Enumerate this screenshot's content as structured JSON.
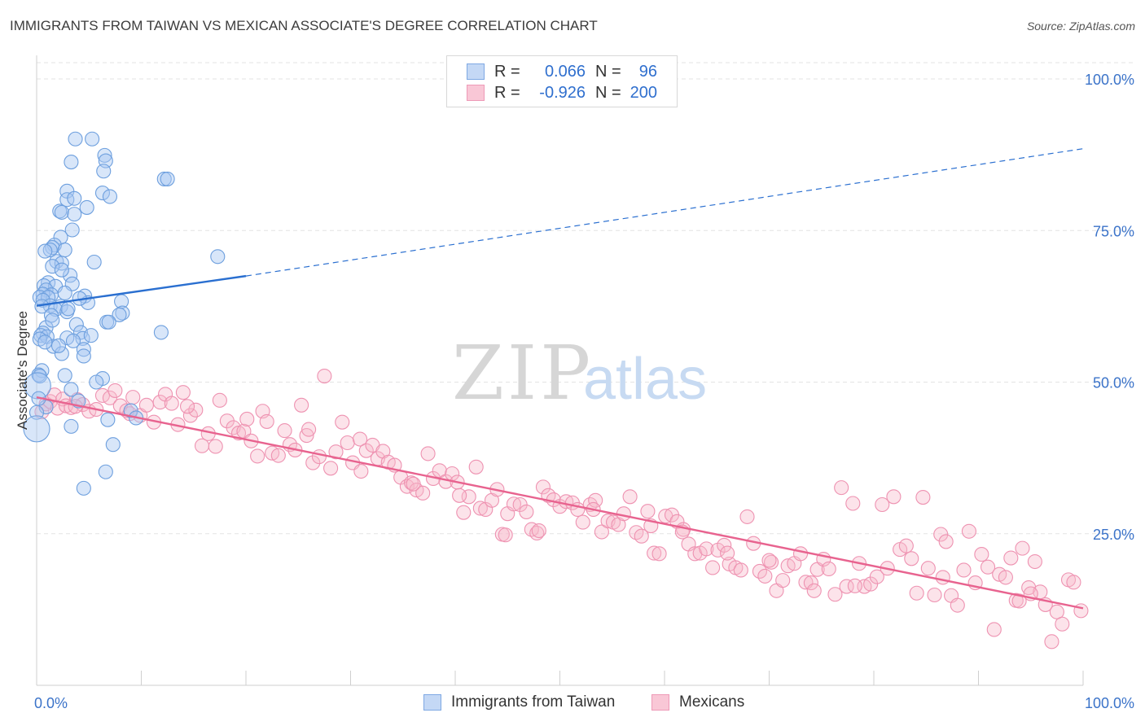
{
  "title": "IMMIGRANTS FROM TAIWAN VS MEXICAN ASSOCIATE'S DEGREE CORRELATION CHART",
  "source": "Source: ZipAtlas.com",
  "watermark": {
    "zip": "ZIP",
    "atlas": "atlas"
  },
  "legend_top": [
    {
      "r_label": "R =",
      "r_value": "0.066",
      "n_label": "N =",
      "n_value": "96"
    },
    {
      "r_label": "R =",
      "r_value": "-0.926",
      "n_label": "N =",
      "n_value": "200"
    }
  ],
  "legend_bottom": [
    "Immigrants from Taiwan",
    "Mexicans"
  ],
  "colors": {
    "taiwan_fill": "#a9c8f2",
    "taiwan_stroke": "#6d9fde",
    "taiwan_line": "#2a6fd0",
    "mexican_fill": "#f7b8cb",
    "mexican_stroke": "#ee92b1",
    "mexican_line": "#e8638f",
    "tick_label": "#3b73c9",
    "grid": "#e3e3e3"
  },
  "chart_data": {
    "type": "scatter",
    "title": "IMMIGRANTS FROM TAIWAN VS MEXICAN ASSOCIATE'S DEGREE CORRELATION CHART",
    "xlabel": "",
    "ylabel": "Associate's Degree",
    "xlim": [
      0,
      100
    ],
    "ylim": [
      0,
      105
    ],
    "x_tick_labels": [
      "0.0%",
      "100.0%"
    ],
    "y_tick_labels": [
      "25.0%",
      "50.0%",
      "75.0%",
      "100.0%"
    ],
    "y_ticks": [
      25,
      50,
      75,
      100
    ],
    "grid": true,
    "legend_position": "top-center",
    "series": [
      {
        "name": "Immigrants from Taiwan",
        "R": 0.066,
        "N": 96,
        "trend": {
          "x": [
            0,
            20,
            100
          ],
          "y": [
            62.6,
            67.5,
            88.5
          ],
          "solid_until_x": 20
        },
        "points": [
          [
            3.7,
            90.1
          ],
          [
            5.3,
            90.1
          ],
          [
            3.3,
            86.3
          ],
          [
            6.5,
            87.4
          ],
          [
            6.6,
            86.5
          ],
          [
            6.4,
            84.8
          ],
          [
            12.2,
            83.5
          ],
          [
            12.5,
            83.5
          ],
          [
            2.9,
            81.5
          ],
          [
            6.3,
            81.2
          ],
          [
            7.0,
            80.6
          ],
          [
            2.9,
            80.1
          ],
          [
            3.6,
            80.3
          ],
          [
            4.8,
            78.8
          ],
          [
            2.2,
            78.2
          ],
          [
            2.4,
            78.0
          ],
          [
            3.6,
            77.7
          ],
          [
            3.4,
            75.1
          ],
          [
            2.3,
            73.9
          ],
          [
            1.7,
            72.6
          ],
          [
            1.5,
            72.2
          ],
          [
            1.3,
            71.8
          ],
          [
            2.7,
            71.8
          ],
          [
            0.8,
            71.6
          ],
          [
            17.3,
            70.7
          ],
          [
            5.5,
            69.8
          ],
          [
            1.9,
            69.9
          ],
          [
            2.4,
            69.6
          ],
          [
            1.5,
            69.1
          ],
          [
            3.2,
            67.6
          ],
          [
            3.4,
            66.2
          ],
          [
            1.1,
            66.4
          ],
          [
            0.7,
            65.9
          ],
          [
            1.8,
            65.8
          ],
          [
            0.9,
            65.2
          ],
          [
            2.7,
            64.7
          ],
          [
            1.4,
            64.4
          ],
          [
            0.6,
            64.5
          ],
          [
            0.3,
            64.0
          ],
          [
            1.1,
            64.0
          ],
          [
            4.6,
            64.2
          ],
          [
            0.6,
            63.5
          ],
          [
            8.1,
            63.3
          ],
          [
            4.9,
            63.1
          ],
          [
            1.3,
            62.6
          ],
          [
            2.3,
            62.5
          ],
          [
            0.5,
            62.5
          ],
          [
            1.8,
            62.0
          ],
          [
            8.2,
            61.4
          ],
          [
            7.9,
            61.1
          ],
          [
            2.9,
            61.6
          ],
          [
            1.4,
            61.0
          ],
          [
            6.7,
            59.9
          ],
          [
            6.9,
            59.9
          ],
          [
            3.8,
            59.5
          ],
          [
            0.9,
            59.0
          ],
          [
            0.6,
            58.1
          ],
          [
            11.9,
            58.2
          ],
          [
            4.2,
            58.2
          ],
          [
            0.4,
            57.7
          ],
          [
            1.0,
            57.5
          ],
          [
            0.3,
            57.1
          ],
          [
            4.4,
            57.2
          ],
          [
            2.9,
            57.3
          ],
          [
            3.5,
            56.8
          ],
          [
            1.6,
            55.9
          ],
          [
            4.5,
            55.4
          ],
          [
            2.4,
            54.7
          ],
          [
            4.5,
            54.3
          ],
          [
            0.5,
            51.9
          ],
          [
            0.2,
            51.2
          ],
          [
            0.3,
            51.0
          ],
          [
            2.7,
            51.1
          ],
          [
            6.3,
            50.6
          ],
          [
            5.7,
            50.0
          ],
          [
            3.3,
            48.8
          ],
          [
            4.0,
            46.9
          ],
          [
            0.9,
            45.9
          ],
          [
            9.0,
            45.3
          ],
          [
            9.5,
            44.1
          ],
          [
            6.8,
            43.8
          ],
          [
            3.3,
            42.7
          ],
          [
            7.3,
            39.7
          ],
          [
            6.6,
            35.2
          ],
          [
            4.5,
            32.5
          ],
          [
            0.1,
            49.4
          ],
          [
            0.2,
            47.3
          ],
          [
            0.0,
            45.0
          ],
          [
            0.0,
            42.3
          ],
          [
            1.5,
            60.2
          ],
          [
            0.8,
            56.6
          ],
          [
            2.1,
            56.0
          ],
          [
            5.2,
            57.7
          ],
          [
            3.0,
            62.1
          ],
          [
            2.4,
            68.5
          ],
          [
            4.1,
            63.8
          ]
        ]
      },
      {
        "name": "Mexicans",
        "R": -0.926,
        "N": 200,
        "trend": {
          "x": [
            0,
            100
          ],
          "y": [
            47.5,
            12.7
          ]
        },
        "points": [
          [
            0.5,
            45.1
          ],
          [
            0.9,
            46.4
          ],
          [
            1.3,
            46.8
          ],
          [
            1.7,
            47.9
          ],
          [
            2.0,
            45.7
          ],
          [
            2.5,
            47.2
          ],
          [
            2.8,
            46.1
          ],
          [
            3.3,
            45.8
          ],
          [
            3.9,
            47.1
          ],
          [
            4.4,
            46.3
          ],
          [
            5.0,
            45.2
          ],
          [
            5.7,
            45.5
          ],
          [
            6.3,
            47.8
          ],
          [
            7.0,
            47.4
          ],
          [
            7.5,
            48.6
          ],
          [
            8.0,
            46.1
          ],
          [
            8.6,
            45.3
          ],
          [
            9.2,
            47.5
          ],
          [
            9.9,
            44.5
          ],
          [
            10.5,
            46.2
          ],
          [
            11.2,
            43.4
          ],
          [
            11.8,
            46.7
          ],
          [
            12.3,
            48.0
          ],
          [
            12.9,
            46.5
          ],
          [
            13.5,
            43.0
          ],
          [
            14.0,
            48.3
          ],
          [
            14.7,
            44.5
          ],
          [
            15.2,
            45.4
          ],
          [
            15.8,
            39.5
          ],
          [
            16.4,
            41.5
          ],
          [
            17.1,
            39.4
          ],
          [
            17.5,
            47.0
          ],
          [
            18.2,
            43.6
          ],
          [
            18.8,
            42.5
          ],
          [
            19.3,
            41.6
          ],
          [
            19.8,
            41.9
          ],
          [
            20.5,
            40.3
          ],
          [
            21.1,
            37.8
          ],
          [
            21.6,
            45.2
          ],
          [
            22.0,
            43.5
          ],
          [
            22.5,
            38.3
          ],
          [
            23.1,
            37.9
          ],
          [
            23.7,
            42.0
          ],
          [
            24.2,
            39.7
          ],
          [
            24.7,
            38.8
          ],
          [
            25.3,
            46.2
          ],
          [
            25.8,
            41.2
          ],
          [
            26.4,
            36.7
          ],
          [
            27.0,
            37.7
          ],
          [
            27.5,
            51.0
          ],
          [
            28.1,
            35.8
          ],
          [
            28.6,
            38.5
          ],
          [
            29.2,
            43.4
          ],
          [
            29.7,
            40.0
          ],
          [
            30.2,
            36.7
          ],
          [
            30.9,
            40.6
          ],
          [
            31.5,
            38.7
          ],
          [
            32.1,
            39.6
          ],
          [
            32.6,
            37.4
          ],
          [
            33.1,
            38.6
          ],
          [
            33.6,
            36.8
          ],
          [
            34.2,
            36.3
          ],
          [
            34.8,
            34.3
          ],
          [
            35.4,
            32.8
          ],
          [
            35.8,
            33.4
          ],
          [
            36.3,
            32.2
          ],
          [
            36.9,
            31.7
          ],
          [
            37.4,
            38.2
          ],
          [
            37.9,
            34.1
          ],
          [
            38.5,
            35.4
          ],
          [
            39.1,
            33.6
          ],
          [
            39.7,
            34.9
          ],
          [
            40.2,
            33.5
          ],
          [
            40.8,
            28.5
          ],
          [
            41.3,
            31.1
          ],
          [
            42.0,
            36.0
          ],
          [
            42.4,
            29.2
          ],
          [
            42.9,
            29.0
          ],
          [
            43.5,
            30.5
          ],
          [
            44.0,
            32.3
          ],
          [
            44.5,
            24.9
          ],
          [
            45.0,
            28.3
          ],
          [
            45.6,
            29.9
          ],
          [
            46.2,
            29.8
          ],
          [
            46.8,
            28.6
          ],
          [
            47.3,
            25.7
          ],
          [
            47.8,
            25.1
          ],
          [
            48.4,
            32.7
          ],
          [
            48.9,
            31.3
          ],
          [
            49.4,
            30.6
          ],
          [
            50.0,
            29.5
          ],
          [
            50.6,
            30.3
          ],
          [
            51.2,
            30.1
          ],
          [
            51.7,
            29.0
          ],
          [
            52.2,
            26.9
          ],
          [
            52.9,
            29.8
          ],
          [
            53.4,
            30.5
          ],
          [
            54.0,
            25.3
          ],
          [
            54.6,
            27.1
          ],
          [
            55.1,
            26.9
          ],
          [
            55.6,
            26.5
          ],
          [
            56.1,
            28.3
          ],
          [
            56.7,
            31.1
          ],
          [
            57.3,
            25.2
          ],
          [
            57.8,
            24.6
          ],
          [
            58.4,
            28.7
          ],
          [
            59.0,
            21.8
          ],
          [
            59.5,
            21.7
          ],
          [
            60.1,
            27.9
          ],
          [
            60.7,
            28.1
          ],
          [
            61.2,
            27.0
          ],
          [
            61.8,
            25.7
          ],
          [
            62.3,
            23.3
          ],
          [
            62.9,
            21.7
          ],
          [
            63.4,
            21.8
          ],
          [
            64.0,
            22.5
          ],
          [
            64.6,
            19.4
          ],
          [
            65.1,
            22.3
          ],
          [
            65.7,
            23.1
          ],
          [
            66.2,
            20.0
          ],
          [
            66.8,
            19.4
          ],
          [
            67.3,
            19.0
          ],
          [
            67.9,
            27.8
          ],
          [
            68.5,
            23.4
          ],
          [
            69.1,
            18.8
          ],
          [
            69.6,
            18.0
          ],
          [
            70.2,
            20.3
          ],
          [
            70.7,
            15.6
          ],
          [
            71.3,
            17.3
          ],
          [
            71.8,
            19.7
          ],
          [
            72.4,
            20.1
          ],
          [
            73.0,
            21.7
          ],
          [
            73.5,
            17.0
          ],
          [
            74.0,
            16.9
          ],
          [
            74.6,
            19.1
          ],
          [
            75.2,
            20.8
          ],
          [
            75.7,
            19.2
          ],
          [
            76.3,
            15.0
          ],
          [
            76.9,
            32.6
          ],
          [
            77.4,
            16.3
          ],
          [
            78.0,
            30.0
          ],
          [
            78.6,
            20.1
          ],
          [
            79.1,
            16.3
          ],
          [
            79.7,
            16.7
          ],
          [
            80.3,
            17.9
          ],
          [
            80.8,
            29.8
          ],
          [
            81.3,
            19.3
          ],
          [
            81.9,
            31.1
          ],
          [
            82.5,
            22.4
          ],
          [
            83.1,
            23.0
          ],
          [
            83.6,
            20.9
          ],
          [
            84.1,
            15.2
          ],
          [
            84.7,
            31.0
          ],
          [
            85.2,
            19.3
          ],
          [
            85.8,
            14.9
          ],
          [
            86.4,
            24.9
          ],
          [
            86.9,
            23.7
          ],
          [
            87.4,
            14.8
          ],
          [
            88.0,
            13.2
          ],
          [
            88.6,
            19.0
          ],
          [
            89.1,
            25.4
          ],
          [
            89.7,
            16.9
          ],
          [
            90.3,
            21.6
          ],
          [
            90.9,
            19.5
          ],
          [
            91.5,
            9.2
          ],
          [
            92.0,
            18.3
          ],
          [
            92.6,
            17.8
          ],
          [
            93.1,
            21.0
          ],
          [
            93.6,
            14.0
          ],
          [
            94.2,
            22.6
          ],
          [
            94.8,
            16.1
          ],
          [
            95.4,
            20.4
          ],
          [
            95.9,
            15.4
          ],
          [
            96.4,
            13.3
          ],
          [
            97.0,
            7.2
          ],
          [
            97.5,
            12.1
          ],
          [
            98.0,
            10.1
          ],
          [
            98.6,
            17.4
          ],
          [
            99.1,
            17.0
          ],
          [
            99.8,
            12.3
          ],
          [
            26.0,
            42.2
          ],
          [
            36.0,
            33.2
          ],
          [
            44.8,
            24.8
          ],
          [
            53.2,
            29.0
          ],
          [
            61.7,
            25.3
          ],
          [
            70.0,
            20.6
          ],
          [
            78.2,
            16.4
          ],
          [
            86.6,
            17.8
          ],
          [
            93.9,
            13.9
          ],
          [
            95.0,
            15.1
          ],
          [
            58.7,
            26.3
          ],
          [
            48.0,
            25.5
          ],
          [
            20.1,
            43.9
          ],
          [
            14.4,
            46.0
          ],
          [
            8.9,
            44.8
          ],
          [
            3.7,
            46.0
          ],
          [
            31.0,
            35.3
          ],
          [
            40.4,
            31.3
          ],
          [
            66.0,
            21.8
          ],
          [
            74.3,
            15.6
          ]
        ]
      }
    ]
  }
}
